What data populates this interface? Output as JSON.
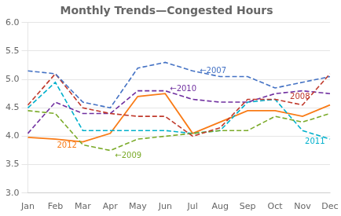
{
  "chart_data": {
    "type": "line",
    "title": "Monthly Trends—Congested Hours",
    "categories": [
      "Jan",
      "Feb",
      "Mar",
      "Apr",
      "May",
      "Jun",
      "Jul",
      "Aug",
      "Sep",
      "Oct",
      "Nov",
      "Dec"
    ],
    "series": [
      {
        "name": "2007",
        "color": "#4472C4",
        "line_style": "dashed",
        "values": [
          5.15,
          5.1,
          4.6,
          4.5,
          5.2,
          5.3,
          5.15,
          5.05,
          5.05,
          4.85,
          4.95,
          5.05
        ]
      },
      {
        "name": "2008",
        "color": "#C0392B",
        "line_style": "dashed",
        "values": [
          4.55,
          5.1,
          4.5,
          4.4,
          4.35,
          4.35,
          4.0,
          4.15,
          4.65,
          4.65,
          4.55,
          5.1
        ]
      },
      {
        "name": "2009",
        "color": "#7AAA28",
        "line_style": "dashed",
        "values": [
          4.45,
          4.4,
          3.85,
          3.75,
          3.95,
          4.0,
          4.05,
          4.1,
          4.1,
          4.35,
          4.25,
          4.4
        ]
      },
      {
        "name": "2010",
        "color": "#7030A0",
        "line_style": "dashed",
        "values": [
          4.05,
          4.6,
          4.4,
          4.4,
          4.8,
          4.8,
          4.65,
          4.6,
          4.6,
          4.75,
          4.8,
          4.75
        ]
      },
      {
        "name": "2011",
        "color": "#00B0CC",
        "line_style": "dashed",
        "values": [
          4.5,
          4.95,
          4.1,
          4.1,
          4.1,
          4.1,
          4.05,
          4.1,
          4.6,
          4.65,
          4.1,
          3.95
        ]
      },
      {
        "name": "2012",
        "color": "#F97B16",
        "line_style": "solid",
        "values": [
          3.98,
          3.95,
          3.9,
          4.05,
          4.7,
          4.75,
          4.05,
          4.25,
          4.45,
          4.45,
          4.35,
          4.55
        ]
      }
    ],
    "annotations": [
      {
        "text": "←2007",
        "series": "2007",
        "x": "Jul",
        "color": "#4472C4"
      },
      {
        "text": "2008",
        "series": "2008",
        "x": "Nov",
        "color": "#C0392B"
      },
      {
        "text": "←2009",
        "series": "2009",
        "x": "Apr",
        "color": "#7AAA28"
      },
      {
        "text": "←2010",
        "series": "2010",
        "x": "Jun",
        "color": "#7030A0"
      },
      {
        "text": "2011",
        "series": "2011",
        "x": "Nov",
        "color": "#00B0CC"
      },
      {
        "text": "2012",
        "series": "2012",
        "x": "Feb",
        "color": "#F97B16"
      }
    ],
    "ylim": [
      3.0,
      6.0
    ],
    "yticks": [
      {
        "value": 3.0,
        "label": "3.0"
      },
      3.5,
      {
        "value": 4.0,
        "label": "4.0"
      },
      4.5,
      {
        "value": 5.0,
        "label": "5.0"
      },
      5.5,
      {
        "value": 6.0,
        "label": "6.0"
      }
    ],
    "grid": true
  }
}
